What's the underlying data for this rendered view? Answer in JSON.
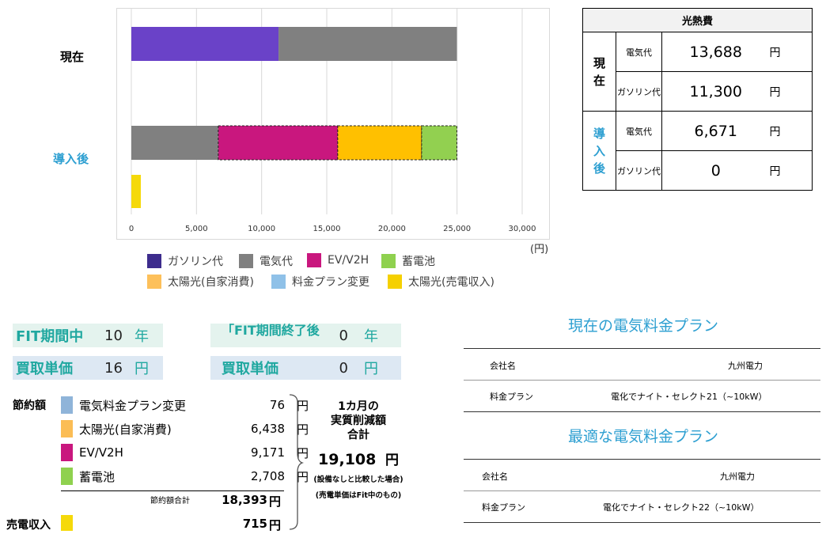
{
  "chart_data": {
    "type": "bar",
    "orientation": "horizontal",
    "stacked": true,
    "categories": [
      "現在",
      "導入後"
    ],
    "x_ticks": [
      "0",
      "5,000",
      "10,000",
      "15,000",
      "20,000",
      "25,000",
      "30,000"
    ],
    "xlim": [
      0,
      30000
    ],
    "unit": "(円)",
    "grid": true,
    "legend_position": "bottom",
    "bars": [
      {
        "row": "現在",
        "segments": [
          {
            "series": "ガソリン代",
            "value": 11300
          },
          {
            "series": "電気代",
            "value": 13688
          }
        ]
      },
      {
        "row": "導入後",
        "segments": [
          {
            "series": "電気代",
            "value": 6671
          },
          {
            "series": "EV/V2H",
            "value": 9171
          },
          {
            "series": "太陽光(自家消費)",
            "value": 6438
          },
          {
            "series": "蓄電池",
            "value": 2708
          }
        ]
      },
      {
        "row": "導入後",
        "segments": [
          {
            "series": "太陽光(売電収入)",
            "value": 715
          }
        ]
      }
    ],
    "legend": [
      {
        "name": "ガソリン代",
        "color": "#3d2c8d"
      },
      {
        "name": "電気代",
        "color": "#808080"
      },
      {
        "name": "EV/V2H",
        "color": "#c9177e"
      },
      {
        "name": "蓄電池",
        "color": "#8fd14f"
      },
      {
        "name": "太陽光(自家消費)",
        "color": "#fdc05a"
      },
      {
        "name": "料金プラン変更",
        "color": "#8fc1e8"
      },
      {
        "name": "太陽光(売電収入)",
        "color": "#f5d000"
      }
    ]
  },
  "colors": {
    "gasoline_bar": "#6a42c8",
    "electric": "#808080",
    "ev": "#c9177e",
    "solar_self": "#ffc000",
    "battery": "#92d050",
    "solar_sell": "#f5d90a"
  },
  "cost_table": {
    "title": "光熱費",
    "groups": [
      {
        "name": [
          "現",
          "在"
        ],
        "color": "#000000",
        "rows": [
          {
            "item": "電気代",
            "value": "13,688",
            "unit": "円"
          },
          {
            "item": "ガソリン代",
            "value": "11,300",
            "unit": "円"
          }
        ]
      },
      {
        "name": [
          "導",
          "入",
          "後"
        ],
        "color": "#2d9fd1",
        "rows": [
          {
            "item": "電気代",
            "value": "6,671",
            "unit": "円"
          },
          {
            "item": "ガソリン代",
            "value": "0",
            "unit": "円"
          }
        ]
      }
    ]
  },
  "fit": {
    "period_label": "FIT期間中",
    "period_value": "10",
    "period_unit": "年",
    "after_label": "「FIT期間終了後",
    "after_value": "0",
    "after_unit": "年",
    "price_label": "買取単価",
    "price_value": "16",
    "price_unit": "円",
    "after_price_label": "買取単価",
    "after_price_value": "0",
    "after_price_unit": "円"
  },
  "savings": {
    "label": "節約額",
    "items": [
      {
        "name": "電気料金プラン変更",
        "value": "76",
        "unit": "円",
        "color": "#8fb4d9"
      },
      {
        "name": "太陽光(自家消費)",
        "value": "6,438",
        "unit": "円",
        "color": "#fbbd55"
      },
      {
        "name": "EV/V2H",
        "value": "9,171",
        "unit": "円",
        "color": "#c9177e"
      },
      {
        "name": "蓄電池",
        "value": "2,708",
        "unit": "円",
        "color": "#8fd14f"
      }
    ],
    "total_label": "節約額合計",
    "total_value": "18,393",
    "total_unit": "円",
    "sell_label": "売電収入",
    "sell_value": "715",
    "sell_unit": "円",
    "sell_color": "#f5d90a"
  },
  "monthly": {
    "title_1": "1カ月の",
    "title_2": "実質削減額",
    "title_3": "合計",
    "value": "19,108",
    "unit": "円",
    "note_1": "(設備なしと比較した場合)",
    "note_2": "(売電単価はFit中のもの)"
  },
  "current_plan": {
    "title": "現在の電気料金プラン",
    "company_label": "会社名",
    "company_value": "九州電力",
    "plan_label": "料金プラン",
    "plan_value": "電化でナイト・セレクト21（~10kW）"
  },
  "optimal_plan": {
    "title": "最適な電気料金プラン",
    "company_label": "会社名",
    "company_value": "九州電力",
    "plan_label": "料金プラン",
    "plan_value": "電化でナイト・セレクト22（~10kW）"
  }
}
